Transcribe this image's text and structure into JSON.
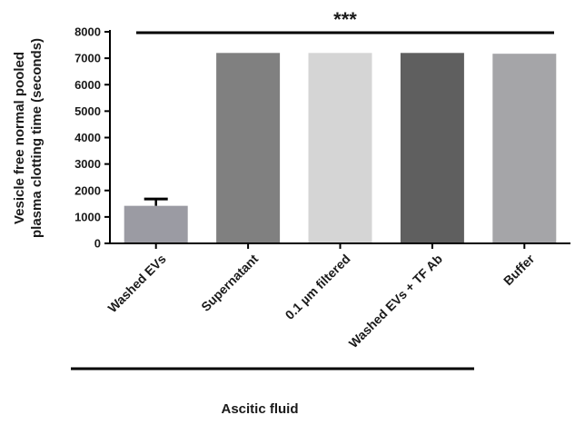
{
  "chart_data": {
    "type": "bar",
    "categories": [
      "Washed EVs",
      "Supernatant",
      "0.1 µm filtered",
      "Washed EVs + TF Ab",
      "Buffer"
    ],
    "values": [
      1420,
      7200,
      7200,
      7200,
      7170
    ],
    "error_upper": [
      1680,
      null,
      null,
      null,
      null
    ],
    "bar_colors": [
      "#9b9ba3",
      "#808080",
      "#d5d5d5",
      "#5f5f5f",
      "#a5a5a8"
    ],
    "ylabel_lines": [
      "Vesicle free normal pooled",
      "plasma clotting time (seconds)"
    ],
    "ylim": [
      0,
      8000
    ],
    "yticks": [
      "0",
      "1000",
      "2000",
      "3000",
      "4000",
      "5000",
      "6000",
      "7000",
      "8000"
    ],
    "significance": "***",
    "group_label": "Ascitic fluid",
    "grid": false
  }
}
